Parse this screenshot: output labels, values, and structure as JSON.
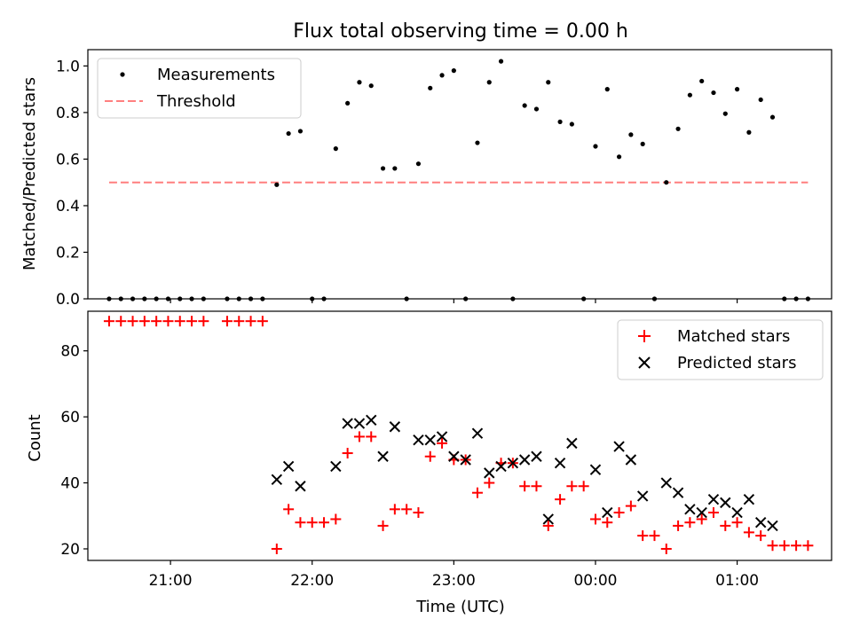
{
  "chart_data": {
    "type": "scatter",
    "title": "Flux total observing time = 0.00 h",
    "xlabel": "Time (UTC)",
    "x_unit": "hours UTC",
    "xlim": [
      "20:25",
      "01:40"
    ],
    "x_ticks": [
      {
        "t": "21:00",
        "label": "21:00"
      },
      {
        "t": "22:00",
        "label": "22:00"
      },
      {
        "t": "23:00",
        "label": "23:00"
      },
      {
        "t": "00:00",
        "label": "00:00"
      },
      {
        "t": "01:00",
        "label": "01:00"
      }
    ],
    "grid": false,
    "panels": [
      {
        "name": "ratio",
        "ylabel": "Matched/Predicted stars",
        "ylim": [
          0,
          1.07
        ],
        "y_ticks": [
          0.0,
          0.2,
          0.4,
          0.6,
          0.8,
          1.0
        ],
        "y_tick_labels": [
          "0.0",
          "0.2",
          "0.4",
          "0.6",
          "0.8",
          "1.0"
        ],
        "legend_position": "top-left",
        "series": [
          {
            "name": "Measurements",
            "marker": "dot",
            "color": "#000000",
            "points": [
              {
                "t": "20:34",
                "y": 0.0
              },
              {
                "t": "20:39",
                "y": 0.0
              },
              {
                "t": "20:44",
                "y": 0.0
              },
              {
                "t": "20:49",
                "y": 0.0
              },
              {
                "t": "20:54",
                "y": 0.0
              },
              {
                "t": "20:59",
                "y": 0.0
              },
              {
                "t": "21:04",
                "y": 0.0
              },
              {
                "t": "21:09",
                "y": 0.0
              },
              {
                "t": "21:14",
                "y": 0.0
              },
              {
                "t": "21:24",
                "y": 0.0
              },
              {
                "t": "21:29",
                "y": 0.0
              },
              {
                "t": "21:34",
                "y": 0.0
              },
              {
                "t": "21:39",
                "y": 0.0
              },
              {
                "t": "21:45",
                "y": 0.49
              },
              {
                "t": "21:50",
                "y": 0.71
              },
              {
                "t": "21:55",
                "y": 0.72
              },
              {
                "t": "22:00",
                "y": 0.0
              },
              {
                "t": "22:05",
                "y": 0.0
              },
              {
                "t": "22:10",
                "y": 0.645
              },
              {
                "t": "22:15",
                "y": 0.84
              },
              {
                "t": "22:20",
                "y": 0.93
              },
              {
                "t": "22:25",
                "y": 0.915
              },
              {
                "t": "22:30",
                "y": 0.56
              },
              {
                "t": "22:35",
                "y": 0.56
              },
              {
                "t": "22:40",
                "y": 0.0
              },
              {
                "t": "22:45",
                "y": 0.58
              },
              {
                "t": "22:50",
                "y": 0.905
              },
              {
                "t": "22:55",
                "y": 0.96
              },
              {
                "t": "23:00",
                "y": 0.98
              },
              {
                "t": "23:05",
                "y": 0.0
              },
              {
                "t": "23:10",
                "y": 0.67
              },
              {
                "t": "23:15",
                "y": 0.93
              },
              {
                "t": "23:20",
                "y": 1.02
              },
              {
                "t": "23:25",
                "y": 0.0
              },
              {
                "t": "23:30",
                "y": 0.83
              },
              {
                "t": "23:35",
                "y": 0.815
              },
              {
                "t": "23:40",
                "y": 0.93
              },
              {
                "t": "23:45",
                "y": 0.76
              },
              {
                "t": "23:50",
                "y": 0.75
              },
              {
                "t": "23:55",
                "y": 0.0
              },
              {
                "t": "00:00",
                "y": 0.655
              },
              {
                "t": "00:05",
                "y": 0.9
              },
              {
                "t": "00:10",
                "y": 0.61
              },
              {
                "t": "00:15",
                "y": 0.705
              },
              {
                "t": "00:20",
                "y": 0.665
              },
              {
                "t": "00:25",
                "y": 0.0
              },
              {
                "t": "00:30",
                "y": 0.5
              },
              {
                "t": "00:35",
                "y": 0.73
              },
              {
                "t": "00:40",
                "y": 0.875
              },
              {
                "t": "00:45",
                "y": 0.935
              },
              {
                "t": "00:50",
                "y": 0.885
              },
              {
                "t": "00:55",
                "y": 0.795
              },
              {
                "t": "01:00",
                "y": 0.9
              },
              {
                "t": "01:05",
                "y": 0.715
              },
              {
                "t": "01:10",
                "y": 0.855
              },
              {
                "t": "01:15",
                "y": 0.78
              },
              {
                "t": "01:20",
                "y": 0.0
              },
              {
                "t": "01:25",
                "y": 0.0
              },
              {
                "t": "01:30",
                "y": 0.0
              }
            ]
          },
          {
            "name": "Threshold",
            "type": "line",
            "style": "dashed",
            "color": "#ff7f7f",
            "points": [
              {
                "t": "20:34",
                "y": 0.5
              },
              {
                "t": "01:30",
                "y": 0.5
              }
            ]
          }
        ]
      },
      {
        "name": "counts",
        "ylabel": "Count",
        "ylim": [
          16.5,
          92
        ],
        "y_ticks": [
          20,
          40,
          60,
          80
        ],
        "y_tick_labels": [
          "20",
          "40",
          "60",
          "80"
        ],
        "legend_position": "top-right",
        "series": [
          {
            "name": "Matched stars",
            "marker": "plus",
            "color": "#ff0000",
            "points": [
              {
                "t": "20:34",
                "y": 89
              },
              {
                "t": "20:39",
                "y": 89
              },
              {
                "t": "20:44",
                "y": 89
              },
              {
                "t": "20:49",
                "y": 89
              },
              {
                "t": "20:54",
                "y": 89
              },
              {
                "t": "20:59",
                "y": 89
              },
              {
                "t": "21:04",
                "y": 89
              },
              {
                "t": "21:09",
                "y": 89
              },
              {
                "t": "21:14",
                "y": 89
              },
              {
                "t": "21:24",
                "y": 89
              },
              {
                "t": "21:29",
                "y": 89
              },
              {
                "t": "21:34",
                "y": 89
              },
              {
                "t": "21:39",
                "y": 89
              },
              {
                "t": "21:45",
                "y": 20
              },
              {
                "t": "21:50",
                "y": 32
              },
              {
                "t": "21:55",
                "y": 28
              },
              {
                "t": "22:00",
                "y": 28
              },
              {
                "t": "22:05",
                "y": 28
              },
              {
                "t": "22:10",
                "y": 29
              },
              {
                "t": "22:15",
                "y": 49
              },
              {
                "t": "22:20",
                "y": 54
              },
              {
                "t": "22:25",
                "y": 54
              },
              {
                "t": "22:30",
                "y": 27
              },
              {
                "t": "22:35",
                "y": 32
              },
              {
                "t": "22:40",
                "y": 32
              },
              {
                "t": "22:45",
                "y": 31
              },
              {
                "t": "22:50",
                "y": 48
              },
              {
                "t": "22:55",
                "y": 52
              },
              {
                "t": "23:00",
                "y": 47
              },
              {
                "t": "23:05",
                "y": 47
              },
              {
                "t": "23:10",
                "y": 37
              },
              {
                "t": "23:15",
                "y": 40
              },
              {
                "t": "23:20",
                "y": 46
              },
              {
                "t": "23:25",
                "y": 46
              },
              {
                "t": "23:30",
                "y": 39
              },
              {
                "t": "23:35",
                "y": 39
              },
              {
                "t": "23:40",
                "y": 27
              },
              {
                "t": "23:45",
                "y": 35
              },
              {
                "t": "23:50",
                "y": 39
              },
              {
                "t": "23:55",
                "y": 39
              },
              {
                "t": "00:00",
                "y": 29
              },
              {
                "t": "00:05",
                "y": 28
              },
              {
                "t": "00:10",
                "y": 31
              },
              {
                "t": "00:15",
                "y": 33
              },
              {
                "t": "00:20",
                "y": 24
              },
              {
                "t": "00:25",
                "y": 24
              },
              {
                "t": "00:30",
                "y": 20
              },
              {
                "t": "00:35",
                "y": 27
              },
              {
                "t": "00:40",
                "y": 28
              },
              {
                "t": "00:45",
                "y": 29
              },
              {
                "t": "00:50",
                "y": 31
              },
              {
                "t": "00:55",
                "y": 27
              },
              {
                "t": "01:00",
                "y": 28
              },
              {
                "t": "01:05",
                "y": 25
              },
              {
                "t": "01:10",
                "y": 24
              },
              {
                "t": "01:15",
                "y": 21
              },
              {
                "t": "01:20",
                "y": 21
              },
              {
                "t": "01:25",
                "y": 21
              },
              {
                "t": "01:30",
                "y": 21
              }
            ]
          },
          {
            "name": "Predicted stars",
            "marker": "x",
            "color": "#000000",
            "points": [
              {
                "t": "21:45",
                "y": 41
              },
              {
                "t": "21:50",
                "y": 45
              },
              {
                "t": "21:55",
                "y": 39
              },
              {
                "t": "22:10",
                "y": 45
              },
              {
                "t": "22:15",
                "y": 58
              },
              {
                "t": "22:20",
                "y": 58
              },
              {
                "t": "22:25",
                "y": 59
              },
              {
                "t": "22:30",
                "y": 48
              },
              {
                "t": "22:35",
                "y": 57
              },
              {
                "t": "22:45",
                "y": 53
              },
              {
                "t": "22:50",
                "y": 53
              },
              {
                "t": "22:55",
                "y": 54
              },
              {
                "t": "23:00",
                "y": 48
              },
              {
                "t": "23:05",
                "y": 47
              },
              {
                "t": "23:10",
                "y": 55
              },
              {
                "t": "23:15",
                "y": 43
              },
              {
                "t": "23:20",
                "y": 45
              },
              {
                "t": "23:25",
                "y": 46
              },
              {
                "t": "23:30",
                "y": 47
              },
              {
                "t": "23:35",
                "y": 48
              },
              {
                "t": "23:40",
                "y": 29
              },
              {
                "t": "23:45",
                "y": 46
              },
              {
                "t": "23:50",
                "y": 52
              },
              {
                "t": "00:00",
                "y": 44
              },
              {
                "t": "00:05",
                "y": 31
              },
              {
                "t": "00:10",
                "y": 51
              },
              {
                "t": "00:15",
                "y": 47
              },
              {
                "t": "00:20",
                "y": 36
              },
              {
                "t": "00:30",
                "y": 40
              },
              {
                "t": "00:35",
                "y": 37
              },
              {
                "t": "00:40",
                "y": 32
              },
              {
                "t": "00:45",
                "y": 31
              },
              {
                "t": "00:50",
                "y": 35
              },
              {
                "t": "00:55",
                "y": 34
              },
              {
                "t": "01:00",
                "y": 31
              },
              {
                "t": "01:05",
                "y": 35
              },
              {
                "t": "01:10",
                "y": 28
              },
              {
                "t": "01:15",
                "y": 27
              }
            ]
          }
        ]
      }
    ]
  }
}
